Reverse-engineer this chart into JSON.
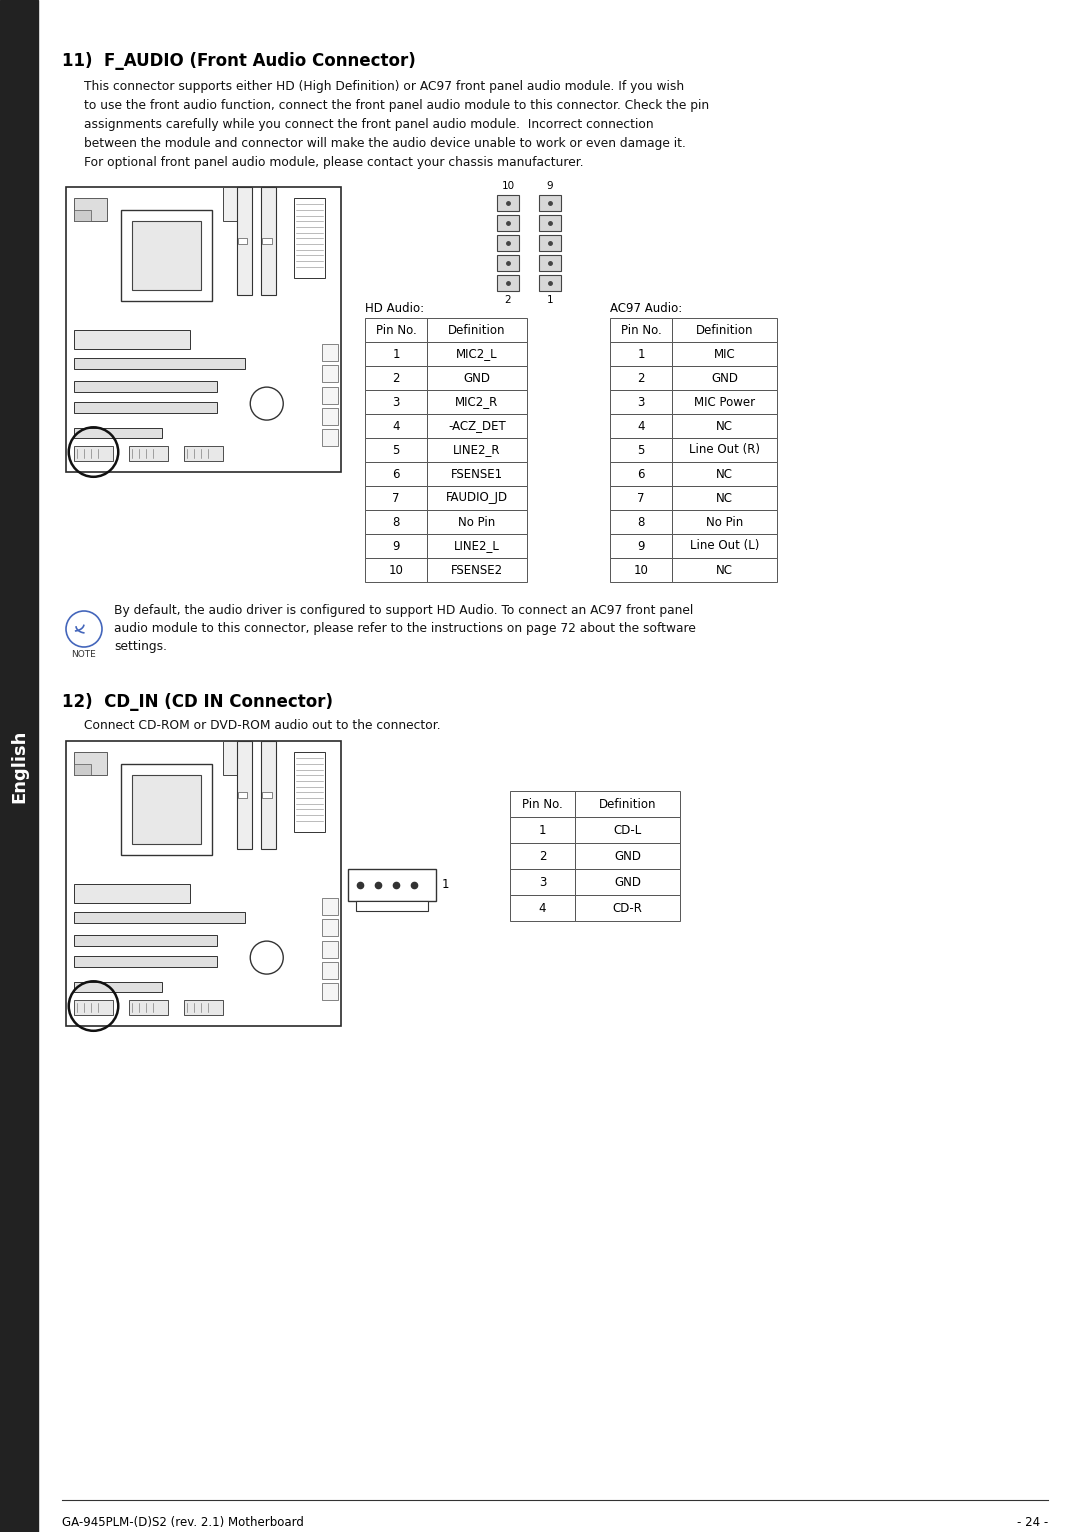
{
  "page_bg": "#ffffff",
  "sidebar_color": "#222222",
  "sidebar_text": "English",
  "section11_title": "11)  F_AUDIO (Front Audio Connector)",
  "section11_body_lines": [
    "This connector supports either HD (High Definition) or AC97 front panel audio module. If you wish",
    "to use the front audio function, connect the front panel audio module to this connector. Check the pin",
    "assignments carefully while you connect the front panel audio module.  Incorrect connection",
    "between the module and connector will make the audio device unable to work or even damage it.",
    "For optional front panel audio module, please contact your chassis manufacturer."
  ],
  "hd_audio_label": "HD Audio:",
  "ac97_audio_label": "AC97 Audio:",
  "hd_table_headers": [
    "Pin No.",
    "Definition"
  ],
  "hd_table_rows": [
    [
      "1",
      "MIC2_L"
    ],
    [
      "2",
      "GND"
    ],
    [
      "3",
      "MIC2_R"
    ],
    [
      "4",
      "-ACZ_DET"
    ],
    [
      "5",
      "LINE2_R"
    ],
    [
      "6",
      "FSENSE1"
    ],
    [
      "7",
      "FAUDIO_JD"
    ],
    [
      "8",
      "No Pin"
    ],
    [
      "9",
      "LINE2_L"
    ],
    [
      "10",
      "FSENSE2"
    ]
  ],
  "ac97_table_headers": [
    "Pin No.",
    "Definition"
  ],
  "ac97_table_rows": [
    [
      "1",
      "MIC"
    ],
    [
      "2",
      "GND"
    ],
    [
      "3",
      "MIC Power"
    ],
    [
      "4",
      "NC"
    ],
    [
      "5",
      "Line Out (R)"
    ],
    [
      "6",
      "NC"
    ],
    [
      "7",
      "NC"
    ],
    [
      "8",
      "No Pin"
    ],
    [
      "9",
      "Line Out (L)"
    ],
    [
      "10",
      "NC"
    ]
  ],
  "note_text_lines": [
    "By default, the audio driver is configured to support HD Audio. To connect an AC97 front panel",
    "audio module to this connector, please refer to the instructions on page 72 about the software",
    "settings."
  ],
  "section12_title": "12)  CD_IN (CD IN Connector)",
  "section12_body": "Connect CD-ROM or DVD-ROM audio out to the connector.",
  "cdin_table_headers": [
    "Pin No.",
    "Definition"
  ],
  "cdin_table_rows": [
    [
      "1",
      "CD-L"
    ],
    [
      "2",
      "GND"
    ],
    [
      "3",
      "GND"
    ],
    [
      "4",
      "CD-R"
    ]
  ],
  "footer_left": "GA-945PLM-(D)S2 (rev. 2.1) Motherboard",
  "footer_right": "- 24 -"
}
